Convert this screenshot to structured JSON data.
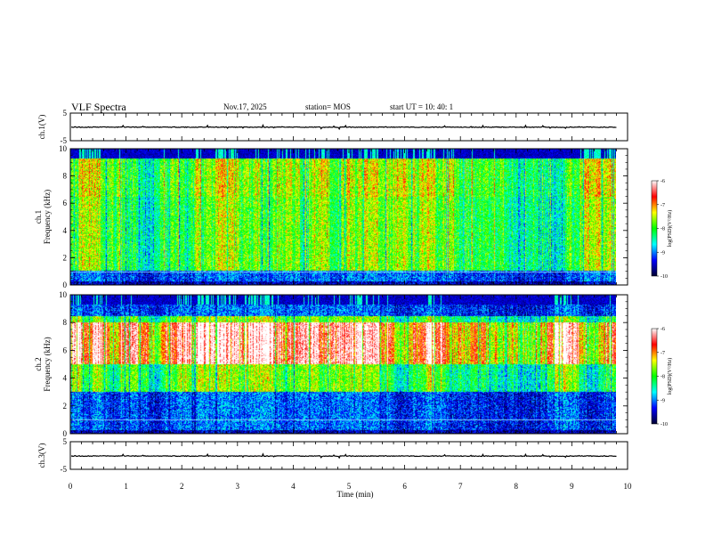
{
  "header": {
    "title": "VLF Spectra",
    "date": "Nov.17, 2025",
    "station": "station= MOS",
    "start": "start  UT  =    10: 40: 1"
  },
  "chart_data": [
    {
      "type": "line",
      "panel": "ch1-waveform",
      "ylabel": "ch.1(V)",
      "yticks": [
        "5",
        "-5"
      ],
      "ylim": [
        -5,
        5
      ],
      "xlim": [
        0,
        10
      ],
      "data_end_min": 9.8,
      "baseline": -0.1
    },
    {
      "type": "heatmap",
      "panel": "ch1-spectrogram",
      "ylabel": "ch.1\nFrequency (kHz)",
      "yticks": [
        "0",
        "2",
        "4",
        "6",
        "8",
        "10"
      ],
      "ylim": [
        0,
        10
      ],
      "xlim": [
        0,
        10
      ],
      "data_end_min": 9.8,
      "colorbar": {
        "label": "log(PSD)(V²/Hz)",
        "ticks": [
          "-6",
          "-7",
          "-8",
          "-9",
          "-10"
        ],
        "range": [
          -10,
          -6
        ],
        "colors": [
          "#000030",
          "#0000ff",
          "#00ffff",
          "#00ff00",
          "#ffff00",
          "#ff0000",
          "#ffffff"
        ]
      },
      "seed": 7,
      "low_band_khz": [
        1,
        6.5
      ],
      "high_band_khz": [
        6.5,
        9.3
      ]
    },
    {
      "type": "heatmap",
      "panel": "ch2-spectrogram",
      "ylabel": "ch.2\nFrequency (kHz)",
      "yticks": [
        "0",
        "2",
        "4",
        "6",
        "8",
        "10"
      ],
      "ylim": [
        0,
        10
      ],
      "xlim": [
        0,
        10
      ],
      "data_end_min": 9.8,
      "colorbar": {
        "label": "log(PSD)(V²/Hz)",
        "ticks": [
          "-6",
          "-7",
          "-8",
          "-9",
          "-10"
        ],
        "range": [
          -10,
          -6
        ],
        "colors": [
          "#000030",
          "#0000ff",
          "#00ffff",
          "#00ff00",
          "#ffff00",
          "#ff0000",
          "#ffffff"
        ]
      },
      "seed": 19,
      "low_band_khz": [
        3,
        8.5
      ],
      "high_band_khz": [
        5,
        8
      ]
    },
    {
      "type": "line",
      "panel": "ch3-waveform",
      "ylabel": "ch.3(V)",
      "yticks": [
        "5",
        "-5"
      ],
      "ylim": [
        -5,
        5
      ],
      "xlim": [
        0,
        10
      ],
      "data_end_min": 9.8,
      "baseline": -0.2
    }
  ],
  "xaxis": {
    "label": "Time  (min)",
    "ticks": [
      "0",
      "1",
      "2",
      "3",
      "4",
      "5",
      "6",
      "7",
      "8",
      "9",
      "10"
    ]
  }
}
